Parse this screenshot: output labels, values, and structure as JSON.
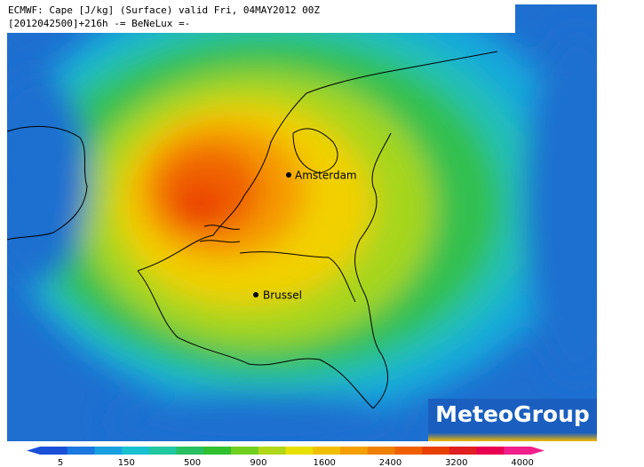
{
  "header": {
    "line1": "ECMWF: Cape [J/kg] (Surface) valid Fri, 04MAY2012 00Z",
    "line2": "[2012042500]+216h -= BeNeLux =-"
  },
  "cities": [
    {
      "label": "Amsterdam"
    },
    {
      "label": "Brussel"
    }
  ],
  "logo": "MeteoGroup",
  "legend": {
    "ticks": [
      5,
      150,
      500,
      900,
      1600,
      2400,
      3200,
      4000
    ]
  }
}
